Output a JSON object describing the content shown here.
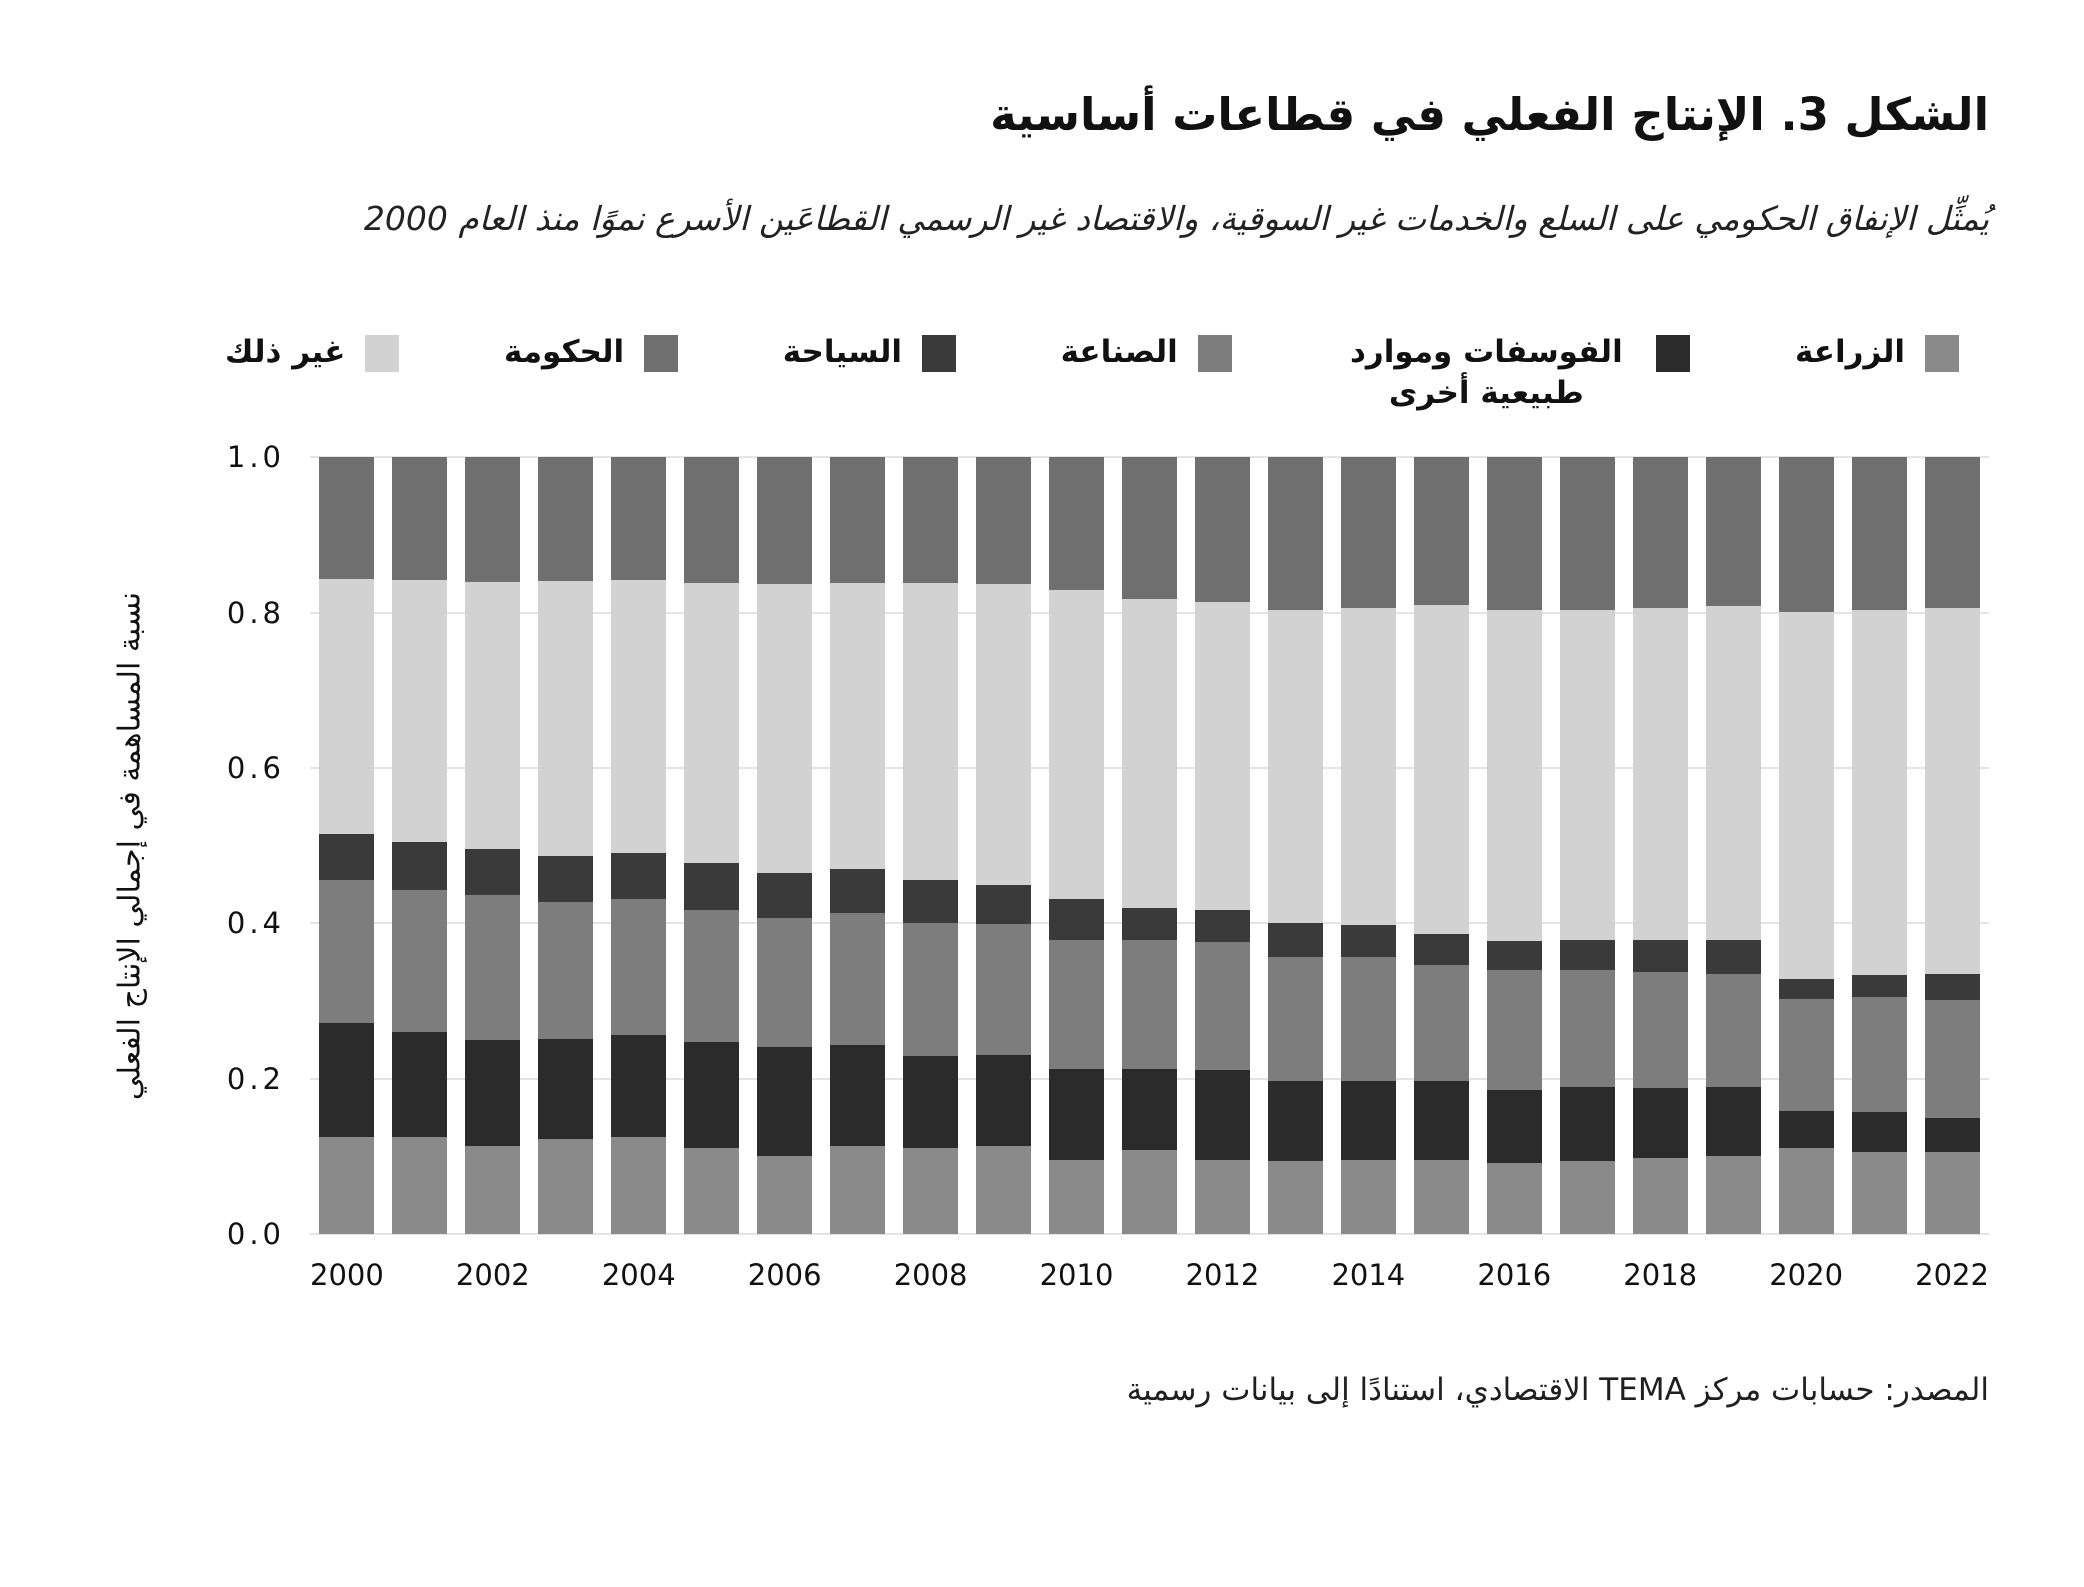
{
  "figure": {
    "title": "الشكل 3. الإنتاج الفعلي في قطاعات أساسية",
    "subtitle": "يُمثِّل الإنفاق الحكومي على السلع والخدمات غير السوقية، والاقتصاد غير الرسمي القطاعَين الأسرع نموًا منذ العام 2000",
    "source": "المصدر: حسابات مركز TEMA الاقتصادي، استنادًا إلى بيانات رسمية"
  },
  "chart_data": {
    "type": "bar",
    "stacked": true,
    "title": "الشكل 3. الإنتاج الفعلي في قطاعات أساسية",
    "xlabel": "",
    "ylabel": "نسبة المساهمة في إجمالي الإنتاج الفعلي",
    "ylim": [
      0,
      1
    ],
    "grid": true,
    "legend_position": "top",
    "categories": [
      2000,
      2001,
      2002,
      2003,
      2004,
      2005,
      2006,
      2007,
      2008,
      2009,
      2010,
      2011,
      2012,
      2013,
      2014,
      2015,
      2016,
      2017,
      2018,
      2019,
      2020,
      2021,
      2022
    ],
    "x_tick_labels": [
      "2000",
      "2002",
      "2004",
      "2006",
      "2008",
      "2010",
      "2012",
      "2014",
      "2016",
      "2018",
      "2020",
      "2022"
    ],
    "y_ticks": [
      {
        "label": "0.0",
        "value": 0.0
      },
      {
        "label": "0.2",
        "value": 0.2
      },
      {
        "label": "0.4",
        "value": 0.4
      },
      {
        "label": "0.6",
        "value": 0.6
      },
      {
        "label": "0.8",
        "value": 0.8
      },
      {
        "label": "1.0",
        "value": 1.0
      }
    ],
    "legend_order": [
      "agriculture",
      "phosphates",
      "industry",
      "tourism",
      "government",
      "other"
    ],
    "series": [
      {
        "key": "agriculture",
        "name": "الزراعة",
        "color": "#8A8A8A",
        "values": [
          0.125,
          0.125,
          0.113,
          0.122,
          0.125,
          0.111,
          0.101,
          0.113,
          0.111,
          0.113,
          0.096,
          0.109,
          0.096,
          0.094,
          0.096,
          0.096,
          0.092,
          0.094,
          0.098,
          0.101,
          0.111,
          0.106,
          0.106
        ]
      },
      {
        "key": "phosphates",
        "name": "الفوسفات وموارد طبيعية أخرى",
        "color": "#2B2B2B",
        "values": [
          0.147,
          0.135,
          0.137,
          0.129,
          0.132,
          0.136,
          0.14,
          0.13,
          0.119,
          0.118,
          0.116,
          0.104,
          0.115,
          0.103,
          0.101,
          0.101,
          0.094,
          0.095,
          0.09,
          0.089,
          0.047,
          0.051,
          0.044
        ]
      },
      {
        "key": "industry",
        "name": "الصناعة",
        "color": "#7D7D7D",
        "values": [
          0.184,
          0.183,
          0.187,
          0.177,
          0.175,
          0.17,
          0.166,
          0.171,
          0.171,
          0.168,
          0.167,
          0.166,
          0.165,
          0.16,
          0.16,
          0.15,
          0.154,
          0.151,
          0.15,
          0.145,
          0.145,
          0.148,
          0.152
        ]
      },
      {
        "key": "tourism",
        "name": "السياحة",
        "color": "#3A3A3A",
        "values": [
          0.059,
          0.062,
          0.059,
          0.059,
          0.058,
          0.061,
          0.058,
          0.056,
          0.055,
          0.051,
          0.053,
          0.041,
          0.041,
          0.044,
          0.041,
          0.04,
          0.038,
          0.039,
          0.041,
          0.044,
          0.025,
          0.028,
          0.033
        ]
      },
      {
        "key": "other",
        "name": "غير ذلك",
        "color": "#D2D2D2",
        "values": [
          0.328,
          0.337,
          0.344,
          0.354,
          0.352,
          0.36,
          0.372,
          0.368,
          0.382,
          0.387,
          0.397,
          0.398,
          0.397,
          0.403,
          0.408,
          0.423,
          0.426,
          0.425,
          0.427,
          0.429,
          0.473,
          0.471,
          0.471
        ]
      },
      {
        "key": "government",
        "name": "الحكومة",
        "color": "#6F6F6F",
        "values": [
          0.157,
          0.158,
          0.16,
          0.159,
          0.158,
          0.162,
          0.163,
          0.162,
          0.162,
          0.163,
          0.171,
          0.182,
          0.186,
          0.196,
          0.194,
          0.19,
          0.196,
          0.196,
          0.194,
          0.192,
          0.199,
          0.196,
          0.194
        ]
      }
    ]
  }
}
